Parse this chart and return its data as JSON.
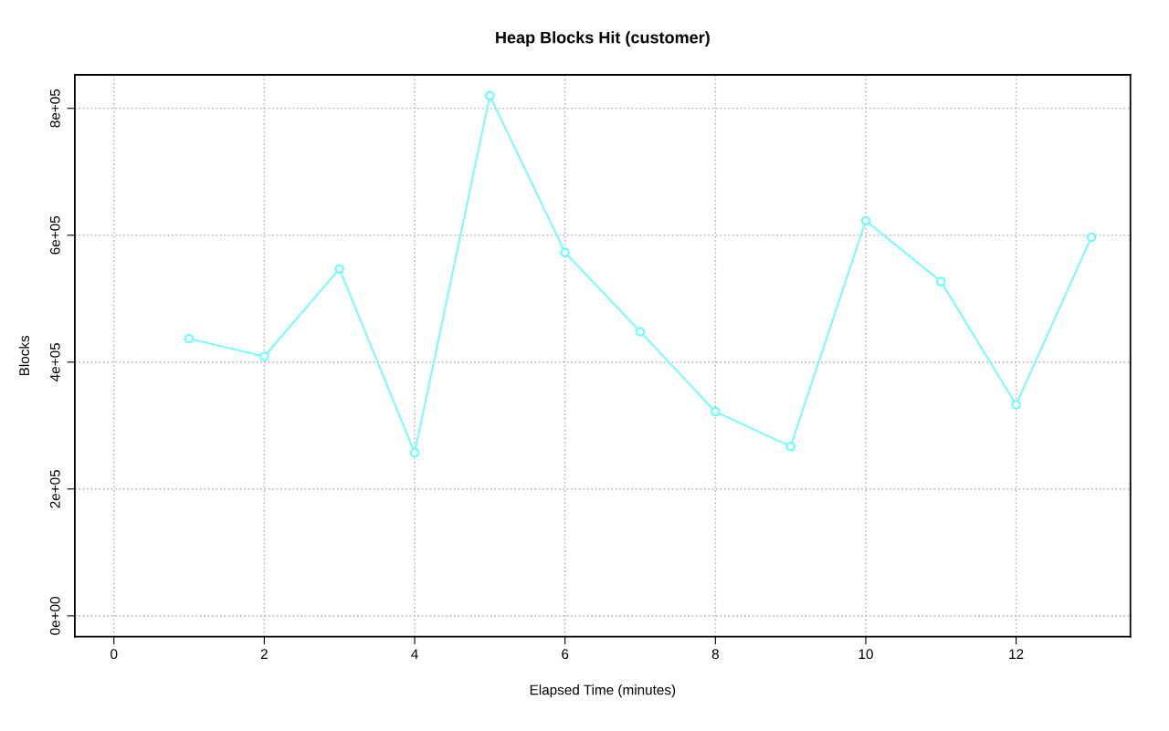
{
  "chart_data": {
    "type": "line",
    "title": "Heap Blocks Hit (customer)",
    "xlabel": "Elapsed Time (minutes)",
    "ylabel": "Blocks",
    "x": [
      1,
      2,
      3,
      4,
      5,
      6,
      7,
      8,
      9,
      10,
      11,
      12,
      13
    ],
    "series": [
      {
        "color": "#66ffff",
        "values": [
          437000,
          409000,
          547000,
          257000,
          820000,
          573000,
          448000,
          322000,
          267000,
          623000,
          527000,
          333000,
          597000
        ]
      }
    ],
    "xlim": [
      -0.52,
      13.52
    ],
    "xticks": [
      0,
      2,
      4,
      6,
      8,
      10,
      12
    ],
    "ylim": [
      -32800,
      852800
    ],
    "yticks": [
      {
        "value": 0,
        "label": "0e+00"
      },
      {
        "value": 200000,
        "label": "2e+05"
      },
      {
        "value": 400000,
        "label": "4e+05"
      },
      {
        "value": 600000,
        "label": "6e+05"
      },
      {
        "value": 800000,
        "label": "8e+05"
      }
    ],
    "grid": true,
    "marker": "circle",
    "line_style": "solid"
  }
}
